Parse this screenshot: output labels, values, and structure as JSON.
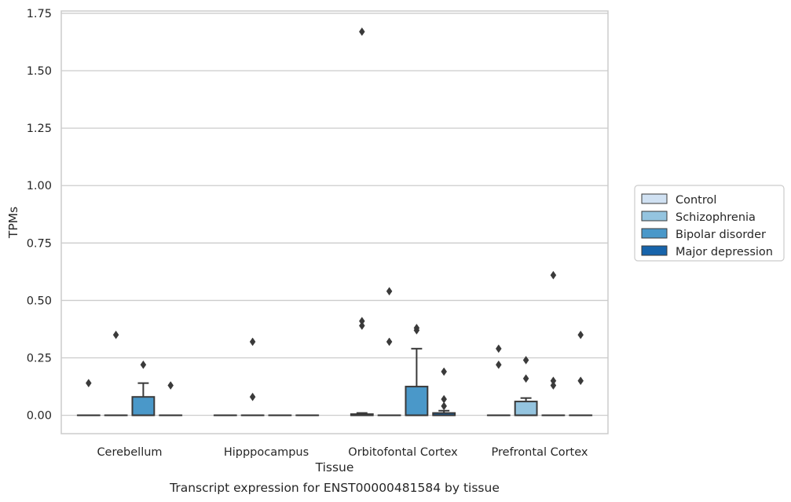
{
  "chart_data": {
    "type": "box",
    "title": "",
    "caption": "Transcript expression for ENST00000481584 by tissue",
    "xlabel": "Tissue",
    "ylabel": "TPMs",
    "ylim": [
      -0.08,
      1.76
    ],
    "yticks": [
      "0.00",
      "0.25",
      "0.50",
      "0.75",
      "1.00",
      "1.25",
      "1.50",
      "1.75"
    ],
    "ytick_values": [
      0,
      0.25,
      0.5,
      0.75,
      1.0,
      1.25,
      1.5,
      1.75
    ],
    "grid": "horizontal",
    "legend_position": "right",
    "categories": [
      "Cerebellum",
      "Hipppocampus",
      "Orbitofontal Cortex",
      "Prefrontal Cortex"
    ],
    "series": [
      {
        "name": "Control",
        "color": "#d0e1f2",
        "boxes": [
          {
            "q1": 0,
            "median": 0,
            "q3": 0,
            "whisker_low": 0,
            "whisker_high": 0,
            "outliers": [
              0.14
            ]
          },
          {
            "q1": 0,
            "median": 0,
            "q3": 0,
            "whisker_low": 0,
            "whisker_high": 0,
            "outliers": []
          },
          {
            "q1": 0,
            "median": 0,
            "q3": 0.005,
            "whisker_low": 0,
            "whisker_high": 0.01,
            "outliers": [
              0.39,
              0.41,
              1.67
            ]
          },
          {
            "q1": 0,
            "median": 0,
            "q3": 0,
            "whisker_low": 0,
            "whisker_high": 0,
            "outliers": [
              0.22,
              0.29
            ]
          }
        ]
      },
      {
        "name": "Schizophrenia",
        "color": "#94c4df",
        "boxes": [
          {
            "q1": 0,
            "median": 0,
            "q3": 0,
            "whisker_low": 0,
            "whisker_high": 0,
            "outliers": [
              0.35
            ]
          },
          {
            "q1": 0,
            "median": 0,
            "q3": 0,
            "whisker_low": 0,
            "whisker_high": 0,
            "outliers": [
              0.08,
              0.32
            ]
          },
          {
            "q1": 0,
            "median": 0,
            "q3": 0,
            "whisker_low": 0,
            "whisker_high": 0,
            "outliers": [
              0.32,
              0.54
            ]
          },
          {
            "q1": 0,
            "median": 0,
            "q3": 0.06,
            "whisker_low": 0,
            "whisker_high": 0.075,
            "outliers": [
              0.16,
              0.24
            ]
          }
        ]
      },
      {
        "name": "Bipolar disorder",
        "color": "#4a98c9",
        "boxes": [
          {
            "q1": 0,
            "median": 0,
            "q3": 0.08,
            "whisker_low": 0,
            "whisker_high": 0.14,
            "outliers": [
              0.22
            ]
          },
          {
            "q1": 0,
            "median": 0,
            "q3": 0,
            "whisker_low": 0,
            "whisker_high": 0,
            "outliers": []
          },
          {
            "q1": 0,
            "median": 0,
            "q3": 0.125,
            "whisker_low": 0,
            "whisker_high": 0.29,
            "outliers": [
              0.37,
              0.38
            ]
          },
          {
            "q1": 0,
            "median": 0,
            "q3": 0,
            "whisker_low": 0,
            "whisker_high": 0,
            "outliers": [
              0.13,
              0.15,
              0.61
            ]
          }
        ]
      },
      {
        "name": "Major depression",
        "color": "#1764ab",
        "boxes": [
          {
            "q1": 0,
            "median": 0,
            "q3": 0,
            "whisker_low": 0,
            "whisker_high": 0,
            "outliers": [
              0.13
            ]
          },
          {
            "q1": 0,
            "median": 0,
            "q3": 0,
            "whisker_low": 0,
            "whisker_high": 0,
            "outliers": []
          },
          {
            "q1": 0,
            "median": 0,
            "q3": 0.01,
            "whisker_low": 0,
            "whisker_high": 0.02,
            "outliers": [
              0.04,
              0.07,
              0.19
            ]
          },
          {
            "q1": 0,
            "median": 0,
            "q3": 0,
            "whisker_low": 0,
            "whisker_high": 0,
            "outliers": [
              0.15,
              0.35
            ]
          }
        ]
      }
    ]
  }
}
